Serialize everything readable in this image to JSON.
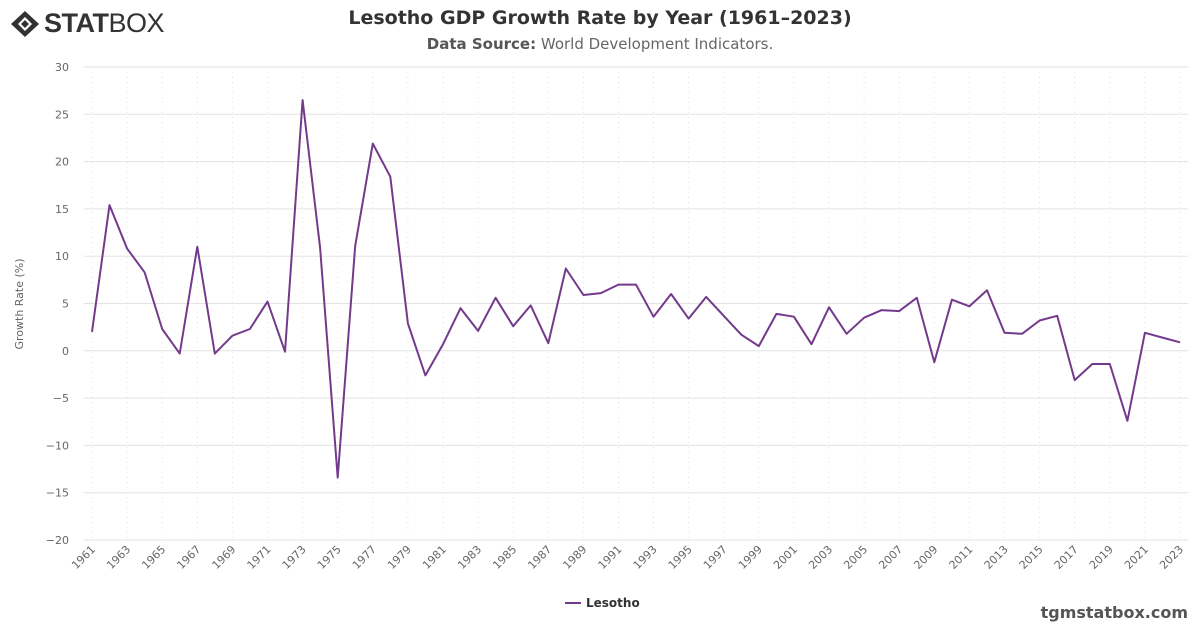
{
  "logo": {
    "text_bold": "STAT",
    "text_light": "BOX"
  },
  "header": {
    "title": "Lesotho GDP Growth Rate by Year (1961–2023)",
    "subtitle_label": "Data Source:",
    "subtitle_value": "World Development Indicators."
  },
  "credit": "tgmstatbox.com",
  "chart_data": {
    "type": "line",
    "title": "Lesotho GDP Growth Rate by Year (1961–2023)",
    "xlabel": "",
    "ylabel": "Growth Rate (%)",
    "ylim": [
      -20,
      30
    ],
    "yticks": [
      30,
      25,
      20,
      15,
      10,
      5,
      0,
      -5,
      -10,
      -15,
      -20
    ],
    "ytick_labels": [
      "30",
      "25",
      "20",
      "15",
      "10",
      "5",
      "0",
      "−5",
      "−10",
      "−15",
      "−20"
    ],
    "xlim": [
      1961,
      2023
    ],
    "xtick_labels": [
      "1961",
      "1963",
      "1965",
      "1967",
      "1969",
      "1971",
      "1973",
      "1975",
      "1977",
      "1979",
      "1981",
      "1983",
      "1985",
      "1987",
      "1989",
      "1991",
      "1993",
      "1995",
      "1997",
      "1999",
      "2001",
      "2003",
      "2005",
      "2007",
      "2009",
      "2011",
      "2013",
      "2015",
      "2017",
      "2019",
      "2021",
      "2023"
    ],
    "grid": true,
    "legend": "bottom-center",
    "color": "#733a8c",
    "series": [
      {
        "name": "Lesotho",
        "x": [
          1961,
          1962,
          1963,
          1964,
          1965,
          1966,
          1967,
          1968,
          1969,
          1970,
          1971,
          1972,
          1973,
          1974,
          1975,
          1976,
          1977,
          1978,
          1979,
          1980,
          1981,
          1982,
          1983,
          1984,
          1985,
          1986,
          1987,
          1988,
          1989,
          1990,
          1991,
          1992,
          1993,
          1994,
          1995,
          1996,
          1997,
          1998,
          1999,
          2000,
          2001,
          2002,
          2003,
          2004,
          2005,
          2006,
          2007,
          2008,
          2009,
          2010,
          2011,
          2012,
          2013,
          2014,
          2015,
          2016,
          2017,
          2018,
          2019,
          2020,
          2021,
          2022,
          2023
        ],
        "values": [
          2.0,
          15.4,
          10.8,
          8.3,
          2.3,
          -0.3,
          11.0,
          -0.3,
          1.6,
          2.3,
          5.2,
          -0.1,
          26.5,
          10.9,
          -13.4,
          11.1,
          21.9,
          18.4,
          2.9,
          -2.6,
          0.7,
          4.5,
          2.1,
          5.6,
          2.6,
          4.8,
          0.8,
          8.7,
          5.9,
          6.1,
          7.0,
          7.0,
          3.6,
          6.0,
          3.4,
          5.7,
          3.7,
          1.7,
          0.5,
          3.9,
          3.6,
          0.7,
          4.6,
          1.8,
          3.5,
          4.3,
          4.2,
          5.6,
          -1.2,
          5.4,
          4.7,
          6.4,
          1.9,
          1.8,
          3.2,
          3.7,
          -3.1,
          -1.4,
          -1.4,
          -7.4,
          1.9,
          1.4,
          0.9
        ]
      }
    ]
  }
}
